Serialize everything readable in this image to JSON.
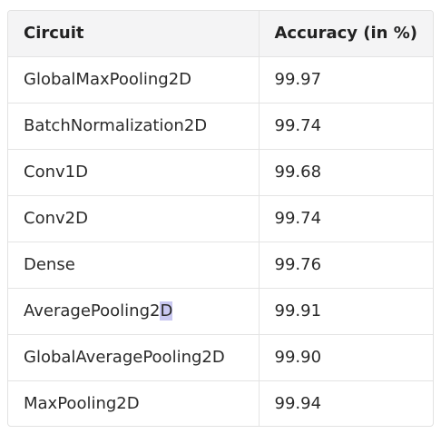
{
  "table": {
    "headers": [
      "Circuit",
      "Accuracy (in %)"
    ],
    "rows": [
      {
        "circuit": "GlobalMaxPooling2D",
        "accuracy": "99.97"
      },
      {
        "circuit": "BatchNormalization2D",
        "accuracy": "99.74"
      },
      {
        "circuit": "Conv1D",
        "accuracy": "99.68"
      },
      {
        "circuit": "Conv2D",
        "accuracy": "99.74"
      },
      {
        "circuit": "Dense",
        "accuracy": "99.76"
      },
      {
        "circuit": "AveragePooling2",
        "circuit_selected": "D",
        "accuracy": "99.91"
      },
      {
        "circuit": "GlobalAveragePooling2D",
        "accuracy": "99.90"
      },
      {
        "circuit": "MaxPooling2D",
        "accuracy": "99.94"
      }
    ]
  },
  "colors": {
    "header_bg": "#f4f4f5",
    "border": "#e4e4e4",
    "selection": "#c9c8f1"
  }
}
